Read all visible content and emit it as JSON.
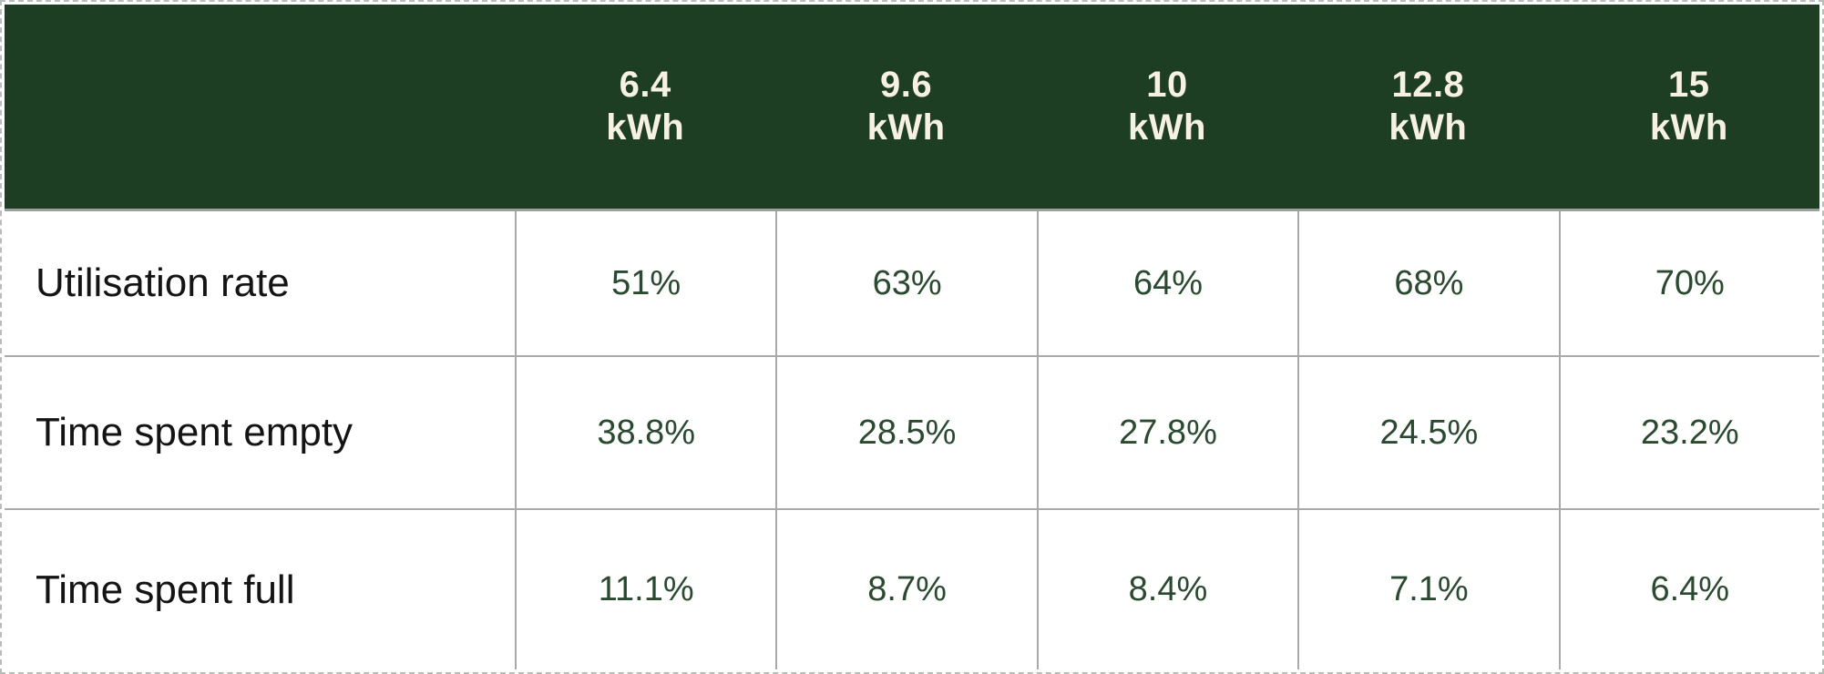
{
  "chart_data": {
    "type": "table",
    "title": "",
    "columns": [
      {
        "label": "6.4",
        "unit": "kWh"
      },
      {
        "label": "9.6",
        "unit": "kWh"
      },
      {
        "label": "10",
        "unit": "kWh"
      },
      {
        "label": "12.8",
        "unit": "kWh"
      },
      {
        "label": "15",
        "unit": "kWh"
      }
    ],
    "rows": [
      {
        "label": "Utilisation rate",
        "values": [
          "51%",
          "63%",
          "64%",
          "68%",
          "70%"
        ]
      },
      {
        "label": "Time spent empty",
        "values": [
          "38.8%",
          "28.5%",
          "27.8%",
          "24.5%",
          "23.2%"
        ]
      },
      {
        "label": "Time spent full",
        "values": [
          "11.1%",
          "8.7%",
          "8.4%",
          "7.1%",
          "6.4%"
        ]
      }
    ]
  },
  "colors": {
    "header_bg": "#1d3e23",
    "header_text": "#f7f1e4",
    "value_text": "#2b4930",
    "label_text": "#141414",
    "grid_line": "#a9a9a9",
    "header_underline": "#9e9e9e",
    "outer_dashed": "#b7beb7"
  }
}
